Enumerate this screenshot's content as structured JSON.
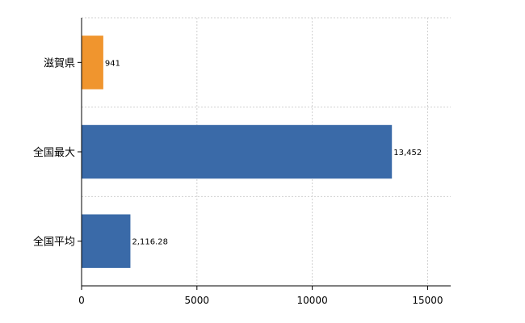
{
  "chart_data": {
    "type": "bar",
    "orientation": "horizontal",
    "categories": [
      "滋賀県",
      "全国最大",
      "全国平均"
    ],
    "values": [
      941,
      13452,
      2116.28
    ],
    "value_labels": [
      "941",
      "13,452",
      "2,116.28"
    ],
    "bar_colors": [
      "#f0952e",
      "#3a6aa8",
      "#3a6aa8"
    ],
    "xlim": [
      0,
      16000
    ],
    "xticks": [
      0,
      5000,
      10000,
      15000
    ],
    "xtick_labels": [
      "0",
      "5000",
      "10000",
      "15000"
    ],
    "grid": true,
    "title": "",
    "xlabel": "",
    "ylabel": ""
  }
}
